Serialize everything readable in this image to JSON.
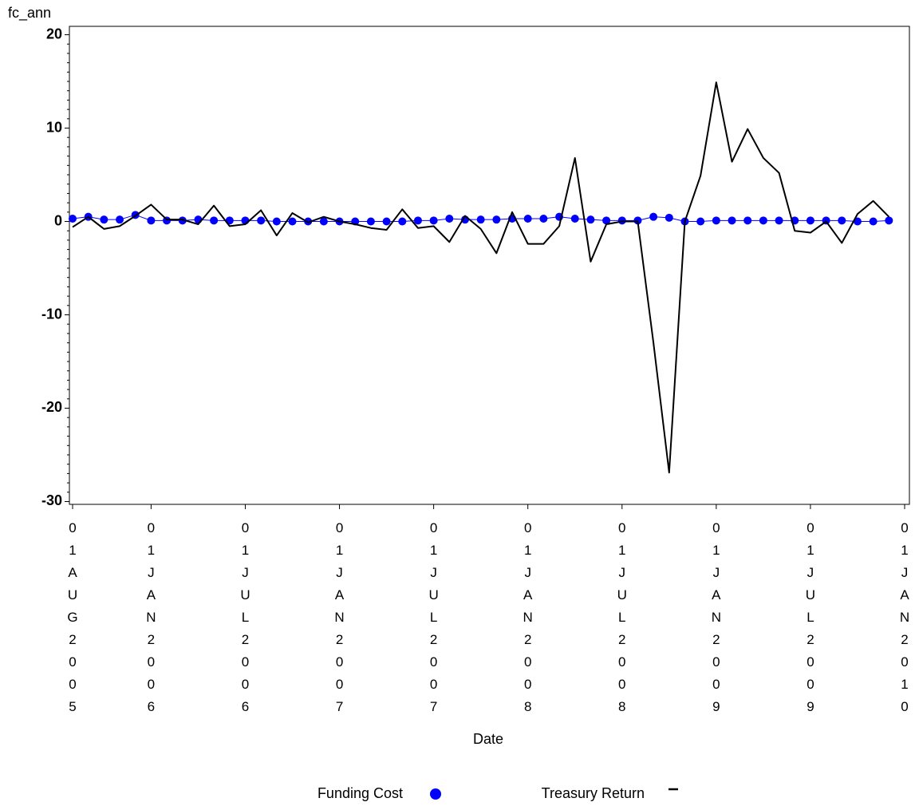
{
  "chart_data": {
    "type": "line",
    "y_label": "fc_ann",
    "x_label": "Date",
    "categories": [
      "01AUG2005",
      null,
      null,
      null,
      null,
      "01JAN2006",
      null,
      null,
      null,
      null,
      null,
      "01JUL2006",
      null,
      null,
      null,
      null,
      null,
      "01JAN2007",
      null,
      null,
      null,
      null,
      null,
      "01JUL2007",
      null,
      null,
      null,
      null,
      null,
      "01JAN2008",
      null,
      null,
      null,
      null,
      null,
      "01JUL2008",
      null,
      null,
      null,
      null,
      null,
      "01JAN2009",
      null,
      null,
      null,
      null,
      null,
      "01JUL2009",
      null,
      null,
      null,
      null,
      null,
      "01JAN2010"
    ],
    "series": [
      {
        "name": "Funding Cost",
        "color": "#0000ff",
        "marker": "dot",
        "values": [
          0.3,
          0.5,
          0.2,
          0.2,
          0.7,
          0.1,
          0.1,
          0.1,
          0.2,
          0.1,
          0.1,
          0.1,
          0.1,
          0,
          0,
          0,
          0,
          0,
          0,
          0,
          0,
          0,
          0.1,
          0.1,
          0.3,
          0.2,
          0.2,
          0.2,
          0.3,
          0.3,
          0.3,
          0.5,
          0.3,
          0.2,
          0.1,
          0.1,
          0.1,
          0.5,
          0.4,
          0,
          0,
          0.1,
          0.1,
          0.1,
          0.1,
          0.1,
          0.1,
          0.1,
          0.1,
          0.1,
          0,
          0,
          0.1,
          null
        ]
      },
      {
        "name": "Treasury Return",
        "color": "#000000",
        "marker": "dash",
        "values": [
          -0.6,
          0.5,
          -0.8,
          -0.5,
          0.6,
          1.8,
          0.2,
          0.2,
          -0.3,
          1.7,
          -0.5,
          -0.3,
          1.2,
          -1.5,
          0.9,
          -0.1,
          0.5,
          0,
          -0.3,
          -0.7,
          -0.9,
          1.3,
          -0.7,
          -0.5,
          -2.2,
          0.6,
          -0.8,
          -3.4,
          1.0,
          -2.4,
          -2.4,
          -0.5,
          6.8,
          -4.3,
          -0.3,
          0,
          0,
          -13,
          -26.9,
          0,
          4.9,
          14.9,
          6.4,
          9.9,
          6.8,
          5.2,
          -1.0,
          -1.2,
          0,
          -2.3,
          0.8,
          2.2,
          0.5,
          null
        ]
      }
    ],
    "ylim": [
      -30.3,
      20.9
    ],
    "yticks": [
      -30,
      -20,
      -10,
      0,
      10,
      20
    ],
    "grid": false
  }
}
